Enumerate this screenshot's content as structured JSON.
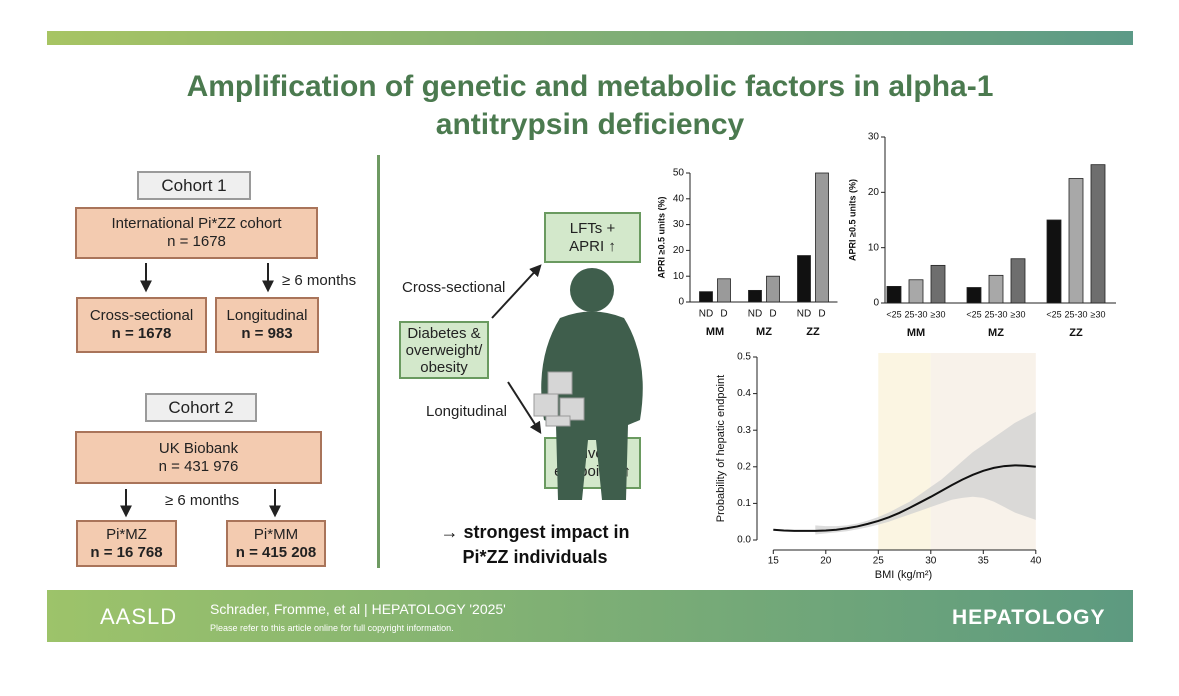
{
  "header": {
    "title": "Amplification of genetic and metabolic factors in alpha-1 antitrypsin deficiency"
  },
  "cohort1": {
    "label": "Cohort 1",
    "source": "International Pi*ZZ cohort",
    "n": "n = 1678",
    "interval": "≥ 6 months",
    "arms": [
      {
        "label": "Cross-sectional",
        "n": "n = 1678"
      },
      {
        "label": "Longitudinal",
        "n": "n = 983"
      }
    ]
  },
  "cohort2": {
    "label": "Cohort 2",
    "source": "UK Biobank",
    "n": "n = 431 976",
    "interval": "≥ 6 months",
    "arms": [
      {
        "label": "Pi*MZ",
        "n": "n = 16 768"
      },
      {
        "label": "Pi*MM",
        "n": "n = 415 208"
      }
    ]
  },
  "center": {
    "exposure": "Diabetes & overweight/ obesity",
    "cross_label": "Cross-sectional",
    "long_label": "Longitudinal",
    "outcome1": "LFTs + APRI ↑",
    "outcome2": "Liver endpoints ↑",
    "conclusion": "→ strongest impact in Pi*ZZ individuals"
  },
  "footer": {
    "logo": "AASLD",
    "citation": "Schrader, Fromme, et al | HEPATOLOGY '2025'",
    "note": "Please refer to this article online for full copyright information.",
    "journal": "HEPATOLOGY"
  },
  "chart_data": [
    {
      "type": "bar",
      "y_label": "APRI ≥0.5 units (%)",
      "categories": [
        "MM",
        "MZ",
        "ZZ"
      ],
      "ylim": [
        0,
        50
      ],
      "yticks": [
        0,
        10,
        20,
        30,
        40,
        50
      ],
      "series": [
        {
          "name": "ND",
          "color": "#111111",
          "values": [
            4,
            4.5,
            18
          ]
        },
        {
          "name": "D",
          "color": "#9a9a9a",
          "values": [
            9,
            10,
            50
          ]
        }
      ]
    },
    {
      "type": "bar",
      "y_label": "APRI ≥0.5 units (%)",
      "categories": [
        "MM",
        "MZ",
        "ZZ"
      ],
      "ylim": [
        0,
        30
      ],
      "yticks": [
        0,
        10,
        20,
        30
      ],
      "series": [
        {
          "name": "<25",
          "color": "#111111",
          "values": [
            3,
            2.8,
            15
          ]
        },
        {
          "name": "25-30",
          "color": "#a8a8a8",
          "values": [
            4.2,
            5,
            22.5
          ]
        },
        {
          "name": "≥30",
          "color": "#6e6e6e",
          "values": [
            6.8,
            8,
            25
          ]
        }
      ]
    },
    {
      "type": "line",
      "y_label": "Probability of hepatic endpoint",
      "x_label": "BMI (kg/m²)",
      "xlim": [
        14.4,
        40.4
      ],
      "ylim": [
        0,
        0.5
      ],
      "xticks": [
        15,
        20,
        25,
        30,
        35,
        40
      ],
      "yticks": [
        {
          "value": 0,
          "label": "0.0"
        },
        {
          "value": 0.1,
          "label": "0.1"
        },
        {
          "value": 0.2,
          "label": "0.2"
        },
        {
          "value": 0.3,
          "label": "0.3"
        },
        {
          "value": 0.4,
          "label": "0.4"
        },
        {
          "value": 0.5,
          "label": "0.5"
        }
      ],
      "shaded_ranges": [
        {
          "from": 25,
          "to": 30,
          "color": "#fbf5e2"
        },
        {
          "from": 30,
          "to": 40,
          "color": "#f8f2ea"
        }
      ],
      "x": [
        15,
        16,
        17,
        18,
        19,
        20,
        21,
        22,
        23,
        24,
        25,
        26,
        27,
        28,
        29,
        30,
        31,
        32,
        33,
        34,
        35,
        36,
        37,
        38,
        39,
        40
      ],
      "series": [
        {
          "color": "#111111",
          "values": [
            0.028,
            0.026,
            0.025,
            0.025,
            0.025,
            0.026,
            0.028,
            0.032,
            0.037,
            0.044,
            0.052,
            0.062,
            0.074,
            0.088,
            0.103,
            0.118,
            0.134,
            0.15,
            0.165,
            0.178,
            0.189,
            0.197,
            0.202,
            0.204,
            0.203,
            0.2
          ]
        }
      ],
      "band": {
        "color": "#d0d0d0",
        "lower": [
          null,
          null,
          null,
          null,
          0.015,
          0.018,
          0.021,
          0.024,
          0.029,
          0.035,
          0.042,
          0.05,
          0.06,
          0.07,
          0.08,
          0.09,
          0.1,
          0.11,
          0.115,
          0.118,
          0.115,
          0.105,
          0.09,
          0.075,
          0.065,
          0.055
        ],
        "upper": [
          null,
          null,
          null,
          null,
          0.04,
          0.038,
          0.038,
          0.04,
          0.045,
          0.053,
          0.063,
          0.075,
          0.09,
          0.105,
          0.125,
          0.145,
          0.165,
          0.19,
          0.215,
          0.24,
          0.26,
          0.28,
          0.3,
          0.32,
          0.335,
          0.35
        ]
      }
    }
  ]
}
